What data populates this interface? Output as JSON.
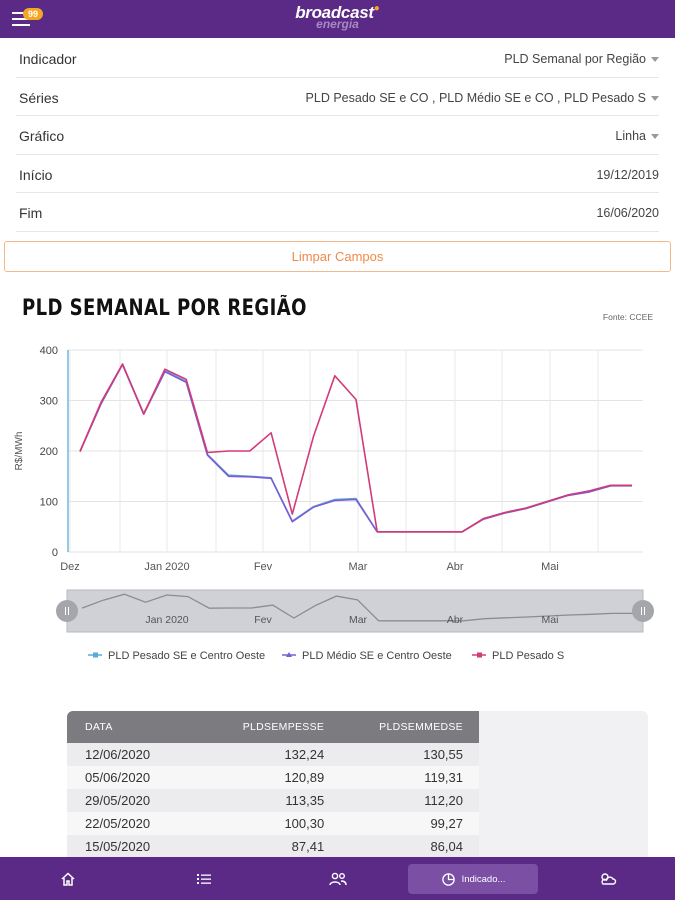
{
  "header": {
    "badge_count": "99",
    "logo_main": "broadcast",
    "logo_sub": "energia"
  },
  "form": {
    "rows": [
      {
        "label": "Indicador",
        "value": "PLD Semanal por Região",
        "dropdown": true
      },
      {
        "label": "Séries",
        "value": "PLD Pesado SE e CO , PLD Médio SE e CO , PLD Pesado S",
        "dropdown": true
      },
      {
        "label": "Gráfico",
        "value": "Linha",
        "dropdown": true
      },
      {
        "label": "Início",
        "value": "19/12/2019",
        "dropdown": false
      },
      {
        "label": "Fim",
        "value": "16/06/2020",
        "dropdown": false
      }
    ],
    "clear_label": "Limpar Campos"
  },
  "chart": {
    "title": "PLD SEMANAL POR REGIÃO",
    "source": "Fonte: CCEE"
  },
  "chart_data": {
    "type": "line",
    "title": "PLD SEMANAL POR REGIÃO",
    "ylabel": "R$/MWh",
    "xlabel": "",
    "ylim": [
      0,
      400
    ],
    "yticks": [
      0,
      100,
      200,
      300,
      400
    ],
    "x_tick_labels": [
      "Dez",
      "Jan 2020",
      "Fev",
      "Mar",
      "Abr",
      "Mai"
    ],
    "navigator_labels": [
      "Jan 2020",
      "Fev",
      "Mar",
      "Abr",
      "Mai"
    ],
    "x": [
      "19/12/2019",
      "26/12/2019",
      "02/01/2020",
      "09/01/2020",
      "16/01/2020",
      "23/01/2020",
      "30/01/2020",
      "06/02/2020",
      "13/02/2020",
      "20/02/2020",
      "27/02/2020",
      "05/03/2020",
      "12/03/2020",
      "19/03/2020",
      "26/03/2020",
      "02/04/2020",
      "09/04/2020",
      "16/04/2020",
      "23/04/2020",
      "30/04/2020",
      "07/05/2020",
      "14/05/2020",
      "21/05/2020",
      "28/05/2020",
      "04/06/2020",
      "11/06/2020",
      "16/06/2020"
    ],
    "series": [
      {
        "name": "PLD Pesado SE e Centro Oeste",
        "color": "#5aa9d6",
        "values": [
          199,
          295,
          372,
          274,
          359,
          338,
          193,
          152,
          150,
          147,
          61,
          90,
          104,
          106,
          40,
          40,
          40,
          40,
          40,
          66,
          78,
          87,
          100,
          113,
          121,
          132,
          132
        ]
      },
      {
        "name": "PLD Médio SE e Centro Oeste",
        "color": "#7b5cd6",
        "values": [
          199,
          294,
          371,
          273,
          357,
          336,
          192,
          150,
          149,
          146,
          60,
          89,
          102,
          104,
          40,
          40,
          40,
          40,
          40,
          65,
          77,
          86,
          99,
          112,
          119,
          131,
          131
        ]
      },
      {
        "name": "PLD Pesado S",
        "color": "#d23a7a",
        "values": [
          199,
          297,
          372,
          273,
          362,
          342,
          197,
          200,
          200,
          236,
          75,
          229,
          349,
          302,
          40,
          40,
          40,
          40,
          40,
          66,
          78,
          87,
          100,
          113,
          121,
          132,
          132
        ]
      }
    ],
    "legend_position": "bottom"
  },
  "table": {
    "columns": [
      "DATA",
      "PLDSEMPESSE",
      "PLDSEMMEDSE"
    ],
    "rows": [
      [
        "12/06/2020",
        "132,24",
        "130,55"
      ],
      [
        "05/06/2020",
        "120,89",
        "119,31"
      ],
      [
        "29/05/2020",
        "113,35",
        "112,20"
      ],
      [
        "22/05/2020",
        "100,30",
        "99,27"
      ],
      [
        "15/05/2020",
        "87,41",
        "86,04"
      ]
    ]
  },
  "bottom_nav": {
    "active_label": "Indicado..."
  },
  "colors": {
    "brand": "#5b2a86",
    "accent": "#f08a4b",
    "badge": "#f5a623"
  }
}
